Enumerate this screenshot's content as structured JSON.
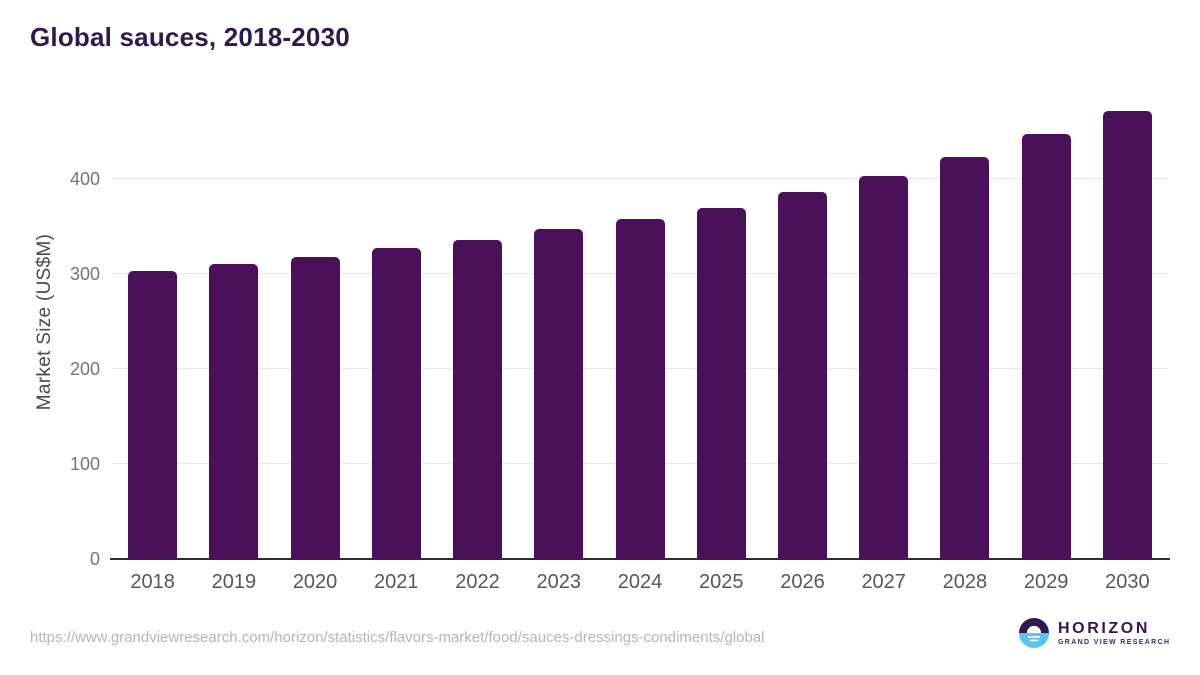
{
  "header": {
    "title": "Global sauces, 2018-2030"
  },
  "chart_data": {
    "type": "bar",
    "title": "Global sauces, 2018-2030",
    "categories": [
      "2018",
      "2019",
      "2020",
      "2021",
      "2022",
      "2023",
      "2024",
      "2025",
      "2026",
      "2027",
      "2028",
      "2029",
      "2030"
    ],
    "values": [
      303,
      311,
      318,
      327,
      336,
      347,
      358,
      370,
      386,
      403,
      423,
      447,
      472
    ],
    "xlabel": "",
    "ylabel": "Market Size (US$M)",
    "ylim": [
      0,
      500
    ],
    "yticks": [
      0,
      100,
      200,
      300,
      400
    ],
    "grid": true,
    "legend": "none",
    "bar_color": "#4a1059"
  },
  "footer": {
    "source_url": "https://www.grandviewresearch.com/horizon/statistics/flavors-market/food/sauces-dressings-condiments/global",
    "logo": {
      "name": "HORIZON",
      "tagline": "GRAND VIEW RESEARCH",
      "icon": "horizon-sun-circle-icon",
      "purple": "#2e1a4e",
      "blue": "#5cc3ef"
    }
  },
  "colors": {
    "title": "#2e1a4d",
    "bar": "#4a1059",
    "gridline": "#e8e8e8",
    "axis_line": "#2d2d2d",
    "tick_label": "#757575",
    "x_label": "#575757",
    "url_text": "#b5b5b5",
    "background": "#ffffff"
  }
}
